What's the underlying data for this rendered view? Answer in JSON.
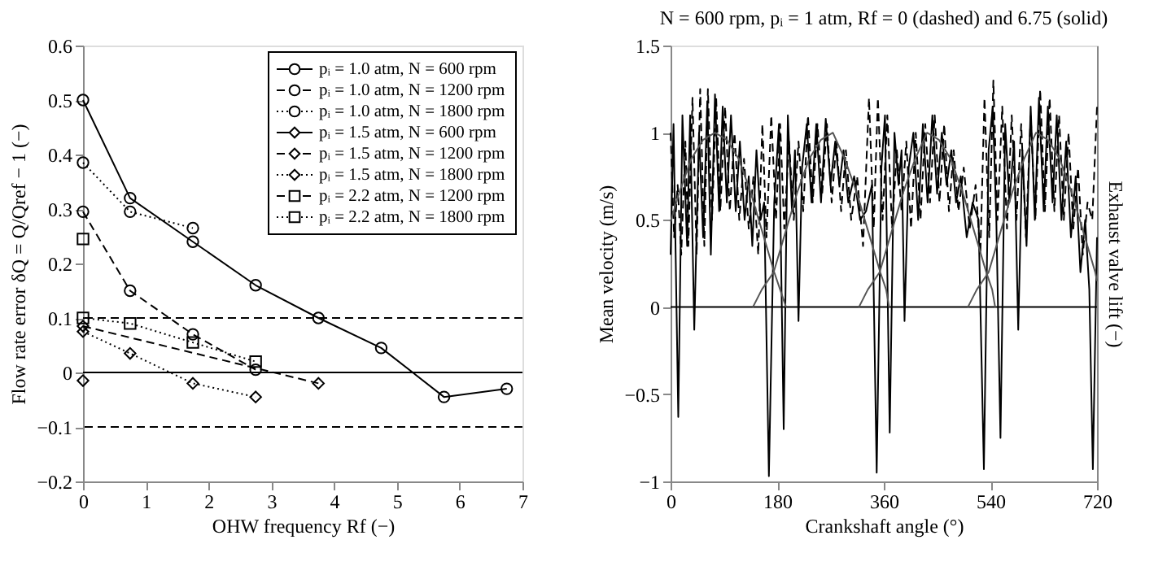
{
  "chart_data": [
    {
      "type": "line",
      "xlabel": "OHW frequency Rf (−)",
      "ylabel": "Flow rate error  δQ = Q/Qref − 1 (−)",
      "xlim": [
        0,
        7
      ],
      "xticks": [
        0,
        1,
        2,
        3,
        4,
        5,
        6,
        7
      ],
      "ylim": [
        -0.2,
        0.6
      ],
      "yticks": [
        -0.2,
        -0.1,
        0,
        0.1,
        0.2,
        0.3,
        0.4,
        0.5,
        0.6
      ],
      "legend": "top right",
      "ref_lines": [
        {
          "axis": "y",
          "value": 0.1,
          "line_style": "dashed",
          "color": "#000000"
        },
        {
          "axis": "y",
          "value": -0.1,
          "line_style": "dashed",
          "color": "#000000"
        },
        {
          "axis": "y",
          "value": 0,
          "line_style": "solid",
          "color": "#000000"
        }
      ],
      "series": [
        {
          "name": "pᵢ = 1.0 atm, N = 600 rpm",
          "color": "#000000",
          "marker": "circle",
          "line_style": "solid",
          "x": [
            0,
            0.75,
            1.75,
            2.75,
            3.75,
            4.75,
            5.75,
            6.75
          ],
          "values": [
            0.5,
            0.32,
            0.24,
            0.16,
            0.1,
            0.045,
            -0.045,
            -0.03
          ]
        },
        {
          "name": "pᵢ = 1.0 atm, N = 1200 rpm",
          "color": "#000000",
          "marker": "circle",
          "line_style": "dashed",
          "x": [
            0,
            0.75,
            1.75,
            2.75
          ],
          "values": [
            0.295,
            0.15,
            0.07,
            0.005
          ]
        },
        {
          "name": "pᵢ = 1.0 atm, N = 1800 rpm",
          "color": "#000000",
          "marker": "circle",
          "line_style": "dotted",
          "x": [
            0,
            0.75,
            1.75
          ],
          "values": [
            0.385,
            0.295,
            0.265
          ]
        },
        {
          "name": "pᵢ = 1.5 atm, N = 600 rpm",
          "color": "#000000",
          "marker": "diamond",
          "line_style": "solid",
          "x": [
            0
          ],
          "values": [
            -0.015
          ]
        },
        {
          "name": "pᵢ = 1.5 atm, N = 1200 rpm",
          "color": "#000000",
          "marker": "diamond",
          "line_style": "dashed",
          "x": [
            0,
            3.75
          ],
          "values": [
            0.085,
            -0.02
          ]
        },
        {
          "name": "pᵢ = 1.5 atm, N = 1800 rpm",
          "color": "#000000",
          "marker": "diamond",
          "line_style": "dotted",
          "x": [
            0,
            0.75,
            1.75,
            2.75
          ],
          "values": [
            0.075,
            0.035,
            -0.02,
            -0.045
          ]
        },
        {
          "name": "pᵢ = 2.2 atm, N = 1200 rpm",
          "color": "#000000",
          "marker": "square",
          "line_style": "dashed",
          "x": [
            0
          ],
          "values": [
            0.245
          ]
        },
        {
          "name": "pᵢ = 2.2 atm, N = 1800 rpm",
          "color": "#000000",
          "marker": "square",
          "line_style": "dotted",
          "x": [
            0,
            0.75,
            1.75,
            2.75
          ],
          "values": [
            0.1,
            0.09,
            0.055,
            0.02
          ]
        }
      ]
    },
    {
      "type": "line",
      "title": "N = 600 rpm, pᵢ = 1 atm, Rf = 0 (dashed) and 6.75 (solid)",
      "xlabel": "Crankshaft angle (°)",
      "ylabel": "Mean velocity (m/s)",
      "y2label": "Exhaust valve lift (−)",
      "xlim": [
        0,
        720
      ],
      "xticks": [
        0,
        180,
        360,
        540,
        720
      ],
      "ylim": [
        -1,
        1.5
      ],
      "yticks": [
        -1,
        -0.5,
        0,
        0.5,
        1,
        1.5
      ],
      "legend": false,
      "ref_lines": [
        {
          "axis": "y",
          "value": 0,
          "line_style": "solid",
          "color": "#000000"
        }
      ],
      "series": [
        {
          "color": "#000000",
          "line_style": "dashed",
          "marker": "none",
          "x": [
            0,
            6,
            12,
            18,
            25,
            30,
            37,
            44,
            50,
            57,
            63,
            70,
            77,
            84,
            92,
            100,
            108,
            116,
            124,
            132,
            140,
            148,
            155,
            162,
            170,
            178,
            185,
            192,
            200,
            208,
            216,
            224,
            232,
            240,
            248,
            256,
            264,
            272,
            280,
            288,
            296,
            305,
            315,
            325,
            335,
            343,
            350,
            358,
            366,
            374,
            382,
            390,
            398,
            406,
            414,
            422,
            430,
            438,
            446,
            454,
            462,
            470,
            478,
            486,
            495,
            505,
            515,
            523,
            530,
            538,
            545,
            552,
            560,
            568,
            576,
            584,
            592,
            600,
            608,
            616,
            624,
            632,
            640,
            648,
            656,
            664,
            672,
            680,
            688,
            696,
            704,
            712,
            720
          ],
          "values": [
            1.0,
            0.4,
            0.7,
            0.3,
            0.95,
            0.35,
            1.2,
            0.3,
            1.25,
            0.35,
            1.25,
            0.5,
            1.2,
            0.55,
            1.15,
            0.55,
            1.0,
            0.5,
            0.85,
            0.45,
            0.75,
            0.3,
            1.05,
            0.4,
            1.1,
            0.5,
            1.05,
            0.45,
            0.95,
            0.5,
            0.95,
            0.55,
            1.1,
            0.6,
            1.05,
            0.65,
            1.05,
            0.6,
            0.95,
            0.55,
            0.9,
            0.5,
            0.75,
            0.35,
            1.2,
            0.45,
            1.2,
            0.5,
            1.1,
            0.45,
            0.9,
            0.55,
            0.95,
            0.45,
            1.0,
            0.5,
            1.05,
            0.6,
            1.1,
            0.6,
            1.05,
            0.55,
            0.9,
            0.55,
            0.8,
            0.45,
            0.7,
            0.3,
            1.2,
            0.4,
            1.3,
            0.5,
            1.15,
            0.45,
            1.1,
            0.5,
            1.05,
            0.4,
            1.1,
            0.5,
            1.25,
            0.55,
            1.2,
            0.55,
            1.1,
            0.5,
            1.0,
            0.45,
            0.8,
            0.3,
            0.6,
            0.5,
            1.15
          ]
        },
        {
          "color": "#000000",
          "line_style": "solid",
          "marker": "none",
          "x": [
            0,
            5,
            13,
            20,
            28,
            33,
            40,
            48,
            55,
            62,
            68,
            75,
            82,
            88,
            95,
            102,
            110,
            117,
            125,
            132,
            138,
            145,
            152,
            158,
            166,
            175,
            183,
            191,
            198,
            205,
            210,
            216,
            222,
            230,
            238,
            246,
            254,
            262,
            270,
            278,
            285,
            292,
            300,
            310,
            320,
            330,
            340,
            348,
            356,
            362,
            370,
            378,
            385,
            390,
            395,
            402,
            410,
            418,
            426,
            434,
            442,
            450,
            458,
            466,
            474,
            482,
            490,
            500,
            510,
            520,
            529,
            537,
            544,
            550,
            557,
            565,
            572,
            580,
            587,
            594,
            601,
            608,
            615,
            622,
            630,
            637,
            645,
            652,
            660,
            668,
            676,
            684,
            692,
            700,
            707,
            713,
            720
          ],
          "values": [
            0.3,
            1.05,
            -0.63,
            1.1,
            0.35,
            1.1,
            -0.13,
            1.0,
            0.4,
            1.18,
            0.3,
            1.22,
            0.55,
            1.15,
            0.6,
            1.1,
            0.55,
            0.95,
            0.5,
            0.75,
            0.35,
            0.9,
            0.5,
            0.6,
            -0.97,
            0.6,
            1.05,
            -0.7,
            1.1,
            0.55,
            0.9,
            -0.08,
            0.8,
            1.05,
            0.6,
            1.05,
            0.6,
            1.08,
            0.7,
            0.95,
            0.7,
            0.9,
            0.6,
            0.75,
            0.5,
            0.55,
            0.7,
            -0.95,
            0.8,
            1.1,
            -0.72,
            1.0,
            0.7,
            0.9,
            -0.08,
            0.8,
            1.0,
            0.5,
            1.05,
            0.6,
            1.1,
            0.65,
            1.0,
            0.7,
            0.9,
            0.6,
            0.75,
            0.4,
            0.6,
            0.5,
            -0.93,
            0.9,
            1.15,
            0.5,
            -0.75,
            1.05,
            0.6,
            0.95,
            -0.13,
            0.9,
            0.35,
            1.15,
            0.5,
            1.2,
            0.55,
            1.15,
            0.6,
            1.1,
            0.5,
            0.95,
            0.4,
            0.75,
            0.2,
            0.5,
            0.1,
            -0.93,
            0.4
          ]
        },
        {
          "color": "#555555",
          "line_style": "solid",
          "marker": "none",
          "x": [
            0,
            15,
            35,
            55,
            75,
            95,
            115,
            135,
            155,
            175,
            185,
            195
          ],
          "values": [
            0.49,
            0.66,
            0.85,
            0.96,
            1.0,
            0.96,
            0.85,
            0.66,
            0.43,
            0.2,
            0.1,
            0.0
          ]
        },
        {
          "color": "#555555",
          "line_style": "solid",
          "marker": "none",
          "x": [
            139,
            154,
            174,
            194,
            214,
            234,
            254,
            274,
            294,
            314,
            334,
            354,
            364,
            369
          ],
          "values": [
            0.0,
            0.1,
            0.2,
            0.43,
            0.66,
            0.85,
            0.96,
            1.0,
            0.85,
            0.66,
            0.43,
            0.2,
            0.1,
            0.0
          ]
        },
        {
          "color": "#555555",
          "line_style": "solid",
          "marker": "none",
          "x": [
            318,
            333,
            353,
            373,
            393,
            413,
            433,
            453,
            473,
            493,
            513,
            533,
            543,
            548
          ],
          "values": [
            0.0,
            0.1,
            0.2,
            0.43,
            0.66,
            0.85,
            1.0,
            0.96,
            0.85,
            0.66,
            0.43,
            0.2,
            0.1,
            0.0
          ]
        },
        {
          "color": "#555555",
          "line_style": "solid",
          "marker": "none",
          "x": [
            502,
            517,
            537,
            557,
            577,
            597,
            617,
            637,
            657,
            677,
            697,
            717,
            720
          ],
          "values": [
            0.0,
            0.1,
            0.2,
            0.43,
            0.66,
            0.85,
            1.0,
            0.96,
            0.85,
            0.66,
            0.43,
            0.2,
            0.15
          ]
        }
      ]
    }
  ]
}
